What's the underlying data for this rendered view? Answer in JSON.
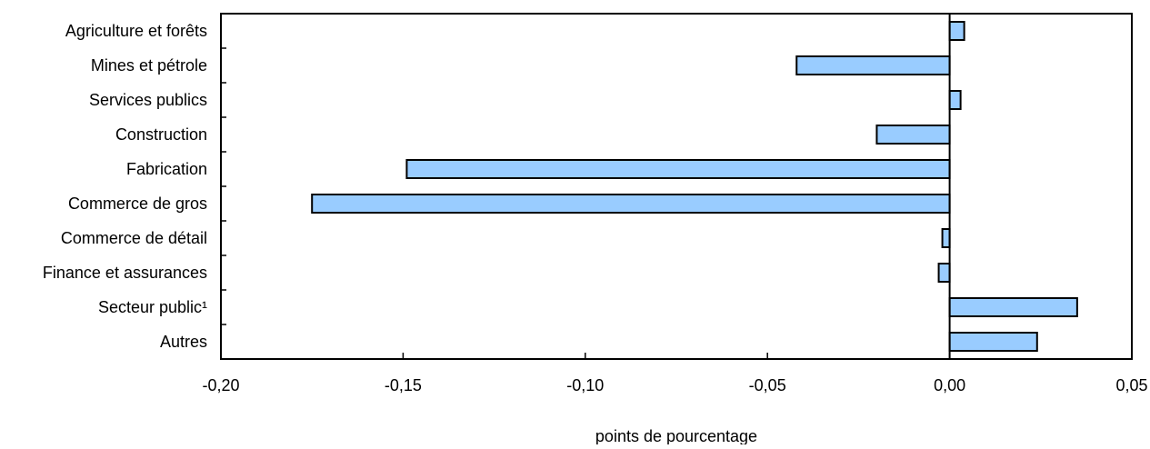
{
  "chart_data": {
    "type": "bar",
    "orientation": "horizontal",
    "categories": [
      "Agriculture et forêts",
      "Mines et pétrole",
      "Services publics",
      "Construction",
      "Fabrication",
      "Commerce de gros",
      "Commerce de détail",
      "Finance et assurances",
      "Secteur public¹",
      "Autres"
    ],
    "values": [
      0.004,
      -0.042,
      0.003,
      -0.02,
      -0.149,
      -0.175,
      -0.002,
      -0.003,
      0.035,
      0.024
    ],
    "xlabel": "points de pourcentage",
    "ylabel": "",
    "title": "",
    "xlim": [
      -0.2,
      0.05
    ],
    "xticks": [
      -0.2,
      -0.15,
      -0.1,
      -0.05,
      0.0,
      0.05
    ],
    "xtick_labels": [
      "-0,20",
      "-0,15",
      "-0,10",
      "-0,05",
      "0,00",
      "0,05"
    ],
    "grid": false,
    "legend": false,
    "colors": {
      "bar_fill": "#99ccff",
      "bar_stroke": "#000000",
      "axis": "#000000"
    }
  }
}
